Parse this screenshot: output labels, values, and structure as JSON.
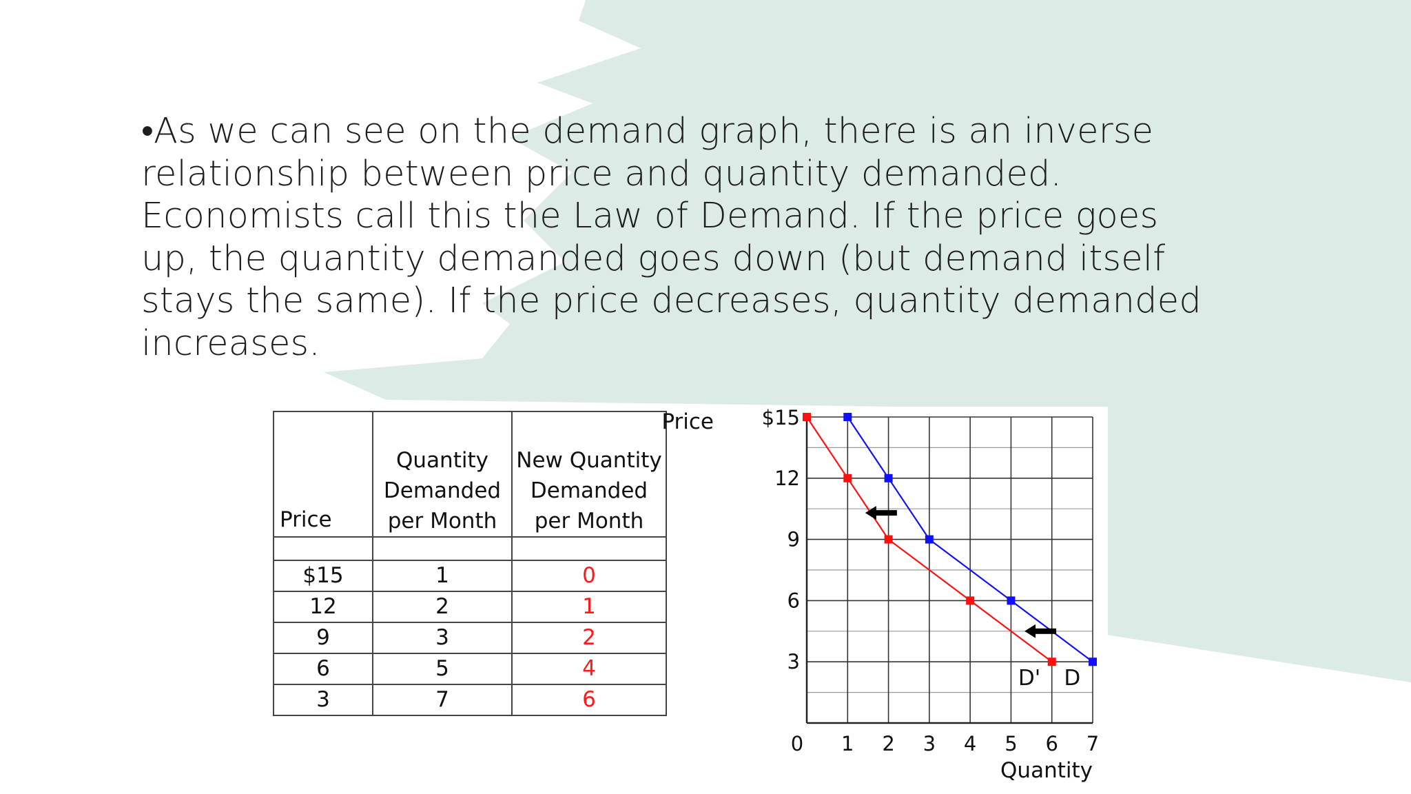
{
  "slide": {
    "text": "•As we can see on the demand graph, there is an inverse relationship between price and quantity demanded. Economists call this the Law of Demand. If the price goes up, the quantity demanded goes down (but demand itself stays the same). If the price decreases, quantity demanded increases."
  },
  "colors": {
    "background_shape": "#dcebe6",
    "demand": "#1010ff",
    "new_demand": "#ff1010",
    "text": "#1e1e1e"
  },
  "table": {
    "headers": [
      "Price",
      "Quantity Demanded per Month",
      "New Quantity Demanded per Month"
    ],
    "rows": [
      [
        "$15",
        "1",
        "0"
      ],
      [
        "12",
        "2",
        "1"
      ],
      [
        "9",
        "3",
        "2"
      ],
      [
        "6",
        "5",
        "4"
      ],
      [
        "3",
        "7",
        "6"
      ]
    ]
  },
  "chart_data": {
    "type": "line",
    "ylabel": "Price",
    "xlabel": "Quantity",
    "xlim": [
      0,
      7
    ],
    "ylim": [
      0,
      15
    ],
    "x_ticks": [
      "0",
      "1",
      "2",
      "3",
      "4",
      "5",
      "6",
      "7"
    ],
    "y_ticks": [
      "$15",
      "12",
      "9",
      "6",
      "3"
    ],
    "grid": true,
    "series": [
      {
        "name": "D",
        "color": "#1010ff",
        "points": [
          [
            1,
            15
          ],
          [
            2,
            12
          ],
          [
            3,
            9
          ],
          [
            5,
            6
          ],
          [
            7,
            3
          ]
        ]
      },
      {
        "name": "D'",
        "color": "#ff1010",
        "points": [
          [
            0,
            15
          ],
          [
            1,
            12
          ],
          [
            2,
            9
          ],
          [
            4,
            6
          ],
          [
            6,
            3
          ]
        ]
      }
    ],
    "annotations": [
      "shift-left arrow",
      "shift-left arrow"
    ]
  }
}
